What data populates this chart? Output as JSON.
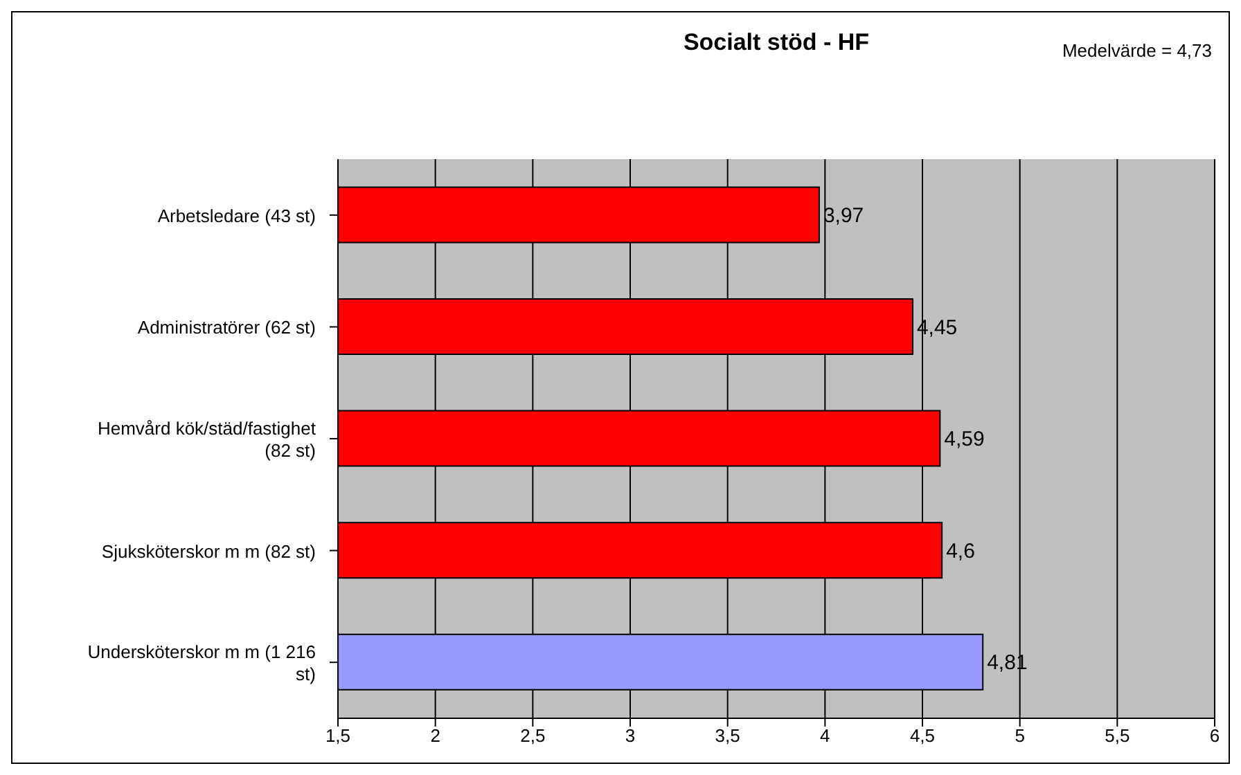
{
  "chart_data": {
    "type": "bar",
    "orientation": "horizontal",
    "title": "Socialt stöd - HF",
    "annotations": [
      "Medelvärde = 4,73"
    ],
    "categories": [
      "Arbetsledare (43 st)",
      "Administratörer (62 st)",
      "Hemvård kök/städ/fastighet (82 st)",
      "Sjuksköterskor m m (82 st)",
      "Undersköterskor m m (1 216 st)"
    ],
    "values": [
      3.97,
      4.45,
      4.59,
      4.6,
      4.81
    ],
    "value_labels": [
      "3,97",
      "4,45",
      "4,59",
      "4,6",
      "4,81"
    ],
    "colors": [
      "#ff0000",
      "#ff0000",
      "#ff0000",
      "#ff0000",
      "#9999ff"
    ],
    "xlim": [
      1.5,
      6
    ],
    "xticks": [
      {
        "value": 1.5,
        "label": "1,5"
      },
      2,
      {
        "value": 2.5,
        "label": "2,5"
      },
      3,
      {
        "value": 3.5,
        "label": "3,5"
      },
      4,
      {
        "value": 4.5,
        "label": "4,5"
      },
      5,
      {
        "value": 5.5,
        "label": "5,5"
      },
      6
    ],
    "grid": "x"
  }
}
